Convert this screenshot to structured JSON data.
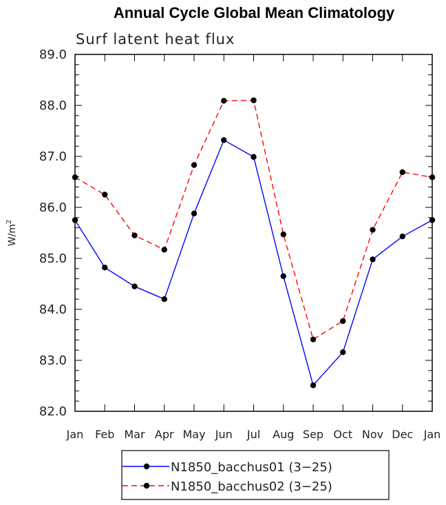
{
  "chart_data": {
    "type": "line",
    "title": "Annual Cycle Global Mean Climatology",
    "subtitle": "Surf latent heat flux",
    "ylabel": "W/m",
    "ylabel_sup": "2",
    "xlabel": "",
    "categories": [
      "Jan",
      "Feb",
      "Mar",
      "Apr",
      "May",
      "Jun",
      "Jul",
      "Aug",
      "Sep",
      "Oct",
      "Nov",
      "Dec",
      "Jan"
    ],
    "ylim": [
      82.0,
      89.0
    ],
    "yticks": [
      "82.0",
      "83.0",
      "84.0",
      "85.0",
      "86.0",
      "87.0",
      "88.0",
      "89.0"
    ],
    "grid": false,
    "legend_position": "bottom",
    "series": [
      {
        "name": "N1850_bacchus01 (3−25)",
        "color": "#0000ff",
        "dash": "solid",
        "values": [
          85.75,
          84.82,
          84.45,
          84.2,
          85.88,
          87.32,
          86.99,
          84.65,
          82.51,
          83.16,
          84.98,
          85.43,
          85.75
        ]
      },
      {
        "name": "N1850_bacchus02 (3−25)",
        "color": "#ff0000",
        "dash": "dashed",
        "values": [
          86.59,
          86.25,
          85.45,
          85.17,
          86.83,
          88.09,
          88.1,
          85.47,
          83.41,
          83.77,
          85.56,
          86.69,
          86.59
        ]
      }
    ]
  }
}
